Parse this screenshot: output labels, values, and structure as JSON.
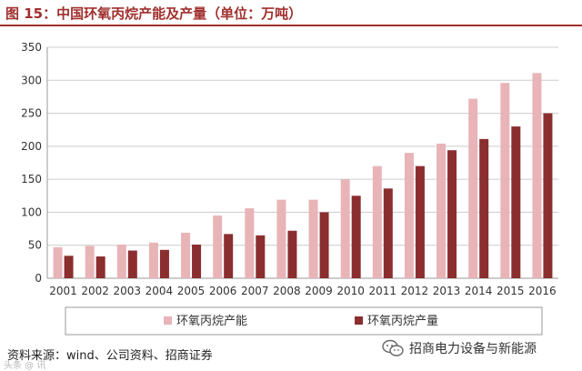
{
  "header": {
    "title": "图 15：中国环氧丙烷产能及产量（单位：万吨）"
  },
  "chart_data": {
    "type": "bar",
    "title": "图 15：中国环氧丙烷产能及产量（单位：万吨）",
    "xlabel": "",
    "ylabel": "",
    "categories": [
      "2001",
      "2002",
      "2003",
      "2004",
      "2005",
      "2006",
      "2007",
      "2008",
      "2009",
      "2010",
      "2011",
      "2012",
      "2013",
      "2014",
      "2015",
      "2016"
    ],
    "series": [
      {
        "name": "环氧丙烷产能",
        "color": "#e8b4b8",
        "values": [
          47,
          49,
          51,
          54,
          69,
          95,
          106,
          119,
          119,
          150,
          170,
          190,
          204,
          272,
          296,
          311
        ]
      },
      {
        "name": "环氧丙烷产量",
        "color": "#8b2e2f",
        "values": [
          34,
          33,
          42,
          43,
          51,
          67,
          65,
          72,
          100,
          125,
          136,
          170,
          194,
          211,
          230,
          250
        ]
      }
    ],
    "yticks": [
      "0",
      "50",
      "100",
      "150",
      "200",
      "250",
      "300",
      "350"
    ],
    "ylim": [
      0,
      350
    ],
    "grid": true,
    "legend_position": "bottom"
  },
  "footer": {
    "source": "资料来源：wind、公司资料、招商证券",
    "wechat_label": "招商电力设备与新能源",
    "watermark": "头条 @ 讯"
  },
  "colors": {
    "title": "#a0302e",
    "capacity": "#e8b4b8",
    "output": "#8b2e2f",
    "grid": "#cccccc"
  }
}
